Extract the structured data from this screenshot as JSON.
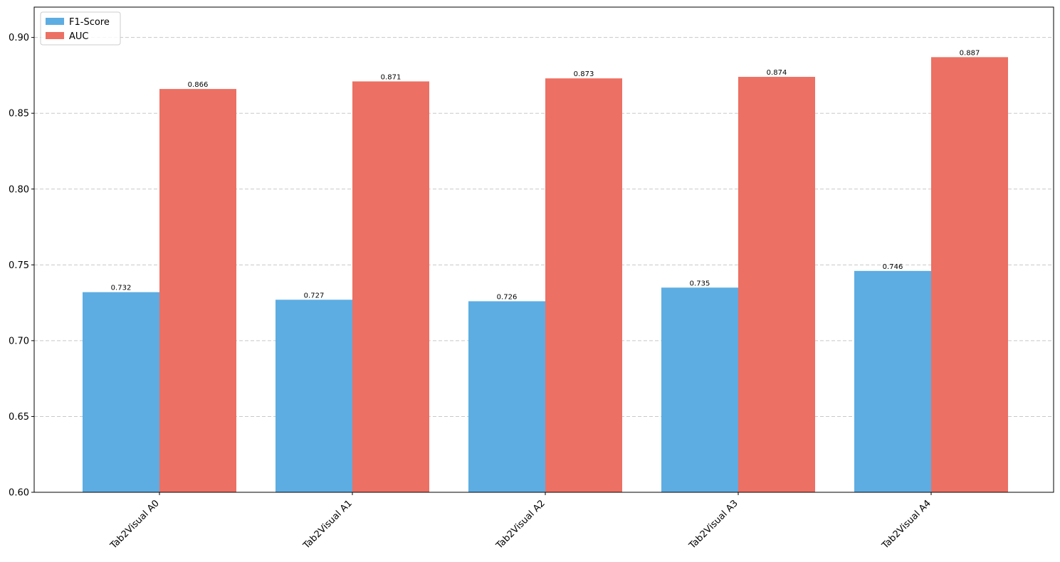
{
  "chart_data": {
    "type": "bar",
    "title": "",
    "xlabel": "",
    "ylabel": "",
    "categories": [
      "Tab2Visual A0",
      "Tab2Visual A1",
      "Tab2Visual A2",
      "Tab2Visual A3",
      "Tab2Visual A4"
    ],
    "series": [
      {
        "name": "F1-Score",
        "color": "#5dade2",
        "values": [
          0.732,
          0.727,
          0.726,
          0.735,
          0.746
        ]
      },
      {
        "name": "AUC",
        "color": "#ec7063",
        "values": [
          0.866,
          0.871,
          0.873,
          0.874,
          0.887
        ]
      }
    ],
    "data_labels": [
      [
        "0.732",
        "0.727",
        "0.726",
        "0.735",
        "0.746"
      ],
      [
        "0.866",
        "0.871",
        "0.873",
        "0.874",
        "0.887"
      ]
    ],
    "ylim": [
      0.6,
      0.92
    ],
    "yticks": [
      0.6,
      0.65,
      0.7,
      0.75,
      0.8,
      0.85,
      0.9
    ],
    "ytick_labels": [
      "0.60",
      "0.65",
      "0.70",
      "0.75",
      "0.80",
      "0.85",
      "0.90"
    ],
    "grid": "y-dashed",
    "legend_position": "top-left",
    "xtick_rotation": "45"
  }
}
